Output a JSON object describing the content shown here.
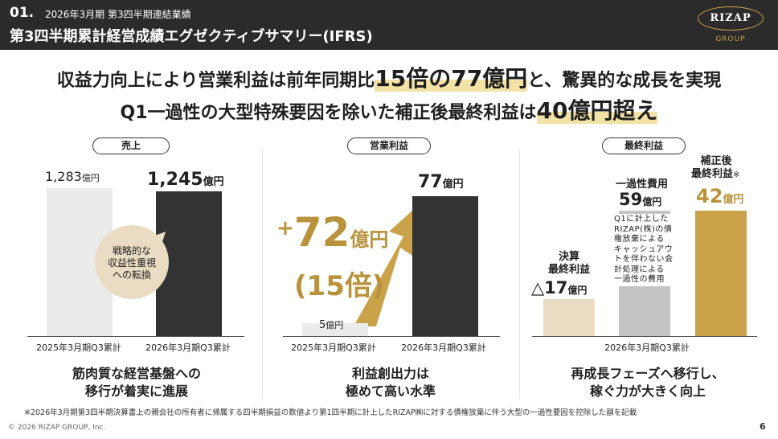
{
  "header": {
    "num": "01.",
    "subtitle": "2026年3月期 第3四半期連結業績",
    "title": "第3四半期累計経営成績エグゼクティブサマリー(IFRS)",
    "logo_text": "RIZAP",
    "logo_group": "GROUP",
    "colors": {
      "bar": "#2b2b2b",
      "gold": "#c9a24a"
    }
  },
  "headline1": {
    "pre": "収益力向上により営業利益は前年同期比",
    "highlight": "15倍の77億円",
    "post": "と、驚異的な成長を実現"
  },
  "headline2": {
    "pre": "Q1一過性の大型特殊要因を除いた補正後最終利益は",
    "highlight": "40億円超え"
  },
  "panels": {
    "revenue": {
      "title": "売上",
      "prev_value": "1,283",
      "prev_unit": "億円",
      "curr_value": "1,245",
      "curr_unit": "億円",
      "bubble": [
        "戦略的な",
        "収益性重視",
        "への転換"
      ],
      "x_prev": "2025年3月期Q3累計",
      "x_curr": "2026年3月期Q3累計",
      "summary": [
        "筋肉質な経営基盤への",
        "移行が着実に進展"
      ]
    },
    "operating": {
      "title": "営業利益",
      "prev_value": "5",
      "prev_unit": "億円",
      "curr_value": "77",
      "curr_unit": "億円",
      "delta_sign": "+",
      "delta_value": "72",
      "delta_unit": "億円",
      "ratio_text": "(15倍)",
      "x_prev": "2025年3月期Q3累計",
      "x_curr": "2026年3月期Q3累計",
      "summary": [
        "利益創出力は",
        "極めて高い水準"
      ]
    },
    "net": {
      "title": "最終利益",
      "final_label": [
        "決算",
        "最終利益"
      ],
      "final_value": "△17",
      "final_unit": "億円",
      "one_time_label": "一過性費用",
      "one_time_value": "59",
      "one_time_unit": "億円",
      "one_time_note": [
        "Q1に計上した",
        "RIZAP(株)の債",
        "権放棄による",
        "キャッシュアウ",
        "トを伴わない会",
        "計処理による",
        "一過性の費用"
      ],
      "adjusted_label": [
        "補正後",
        "最終利益"
      ],
      "adjusted_mark": "※",
      "adjusted_value": "42",
      "adjusted_unit": "億円",
      "x_label": "2026年3月期Q3累計",
      "summary": [
        "再成長フェーズへ移行し、",
        "稼ぐ力が大きく向上"
      ]
    }
  },
  "chart_data": [
    {
      "type": "bar",
      "title": "売上",
      "categories": [
        "2025年3月期Q3累計",
        "2026年3月期Q3累計"
      ],
      "values": [
        1283,
        1245
      ],
      "unit": "億円"
    },
    {
      "type": "bar",
      "title": "営業利益",
      "categories": [
        "2025年3月期Q3累計",
        "2026年3月期Q3累計"
      ],
      "values": [
        5,
        77
      ],
      "unit": "億円"
    },
    {
      "type": "bar",
      "title": "最終利益",
      "categories": [
        "決算最終利益",
        "一過性費用",
        "補正後最終利益"
      ],
      "values": [
        -17,
        59,
        42
      ],
      "unit": "億円"
    }
  ],
  "footnote": "※2026年3月期第3四半期決算書上の親会社の所有者に帰属する四半期損益の数値より第1四半期に計上したRIZAP㈱に対する債権放棄に伴う大型の一過性要因を控除した額を記載",
  "copyright": "© 2026 RIZAP GROUP, Inc.",
  "page_number": "6"
}
